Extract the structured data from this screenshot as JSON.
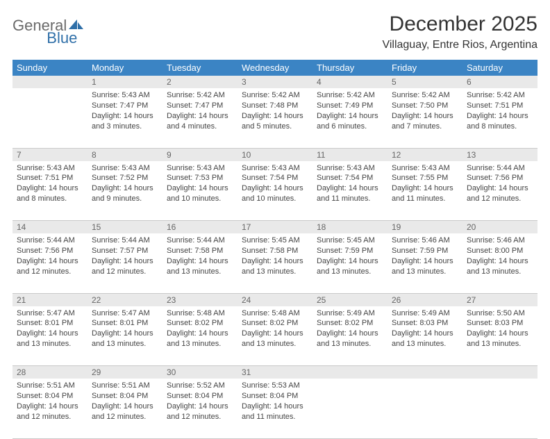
{
  "brand": {
    "part1": "General",
    "part2": "Blue"
  },
  "title": "December 2025",
  "location": "Villaguay, Entre Rios, Argentina",
  "colors": {
    "header_bg": "#3b84c4",
    "header_text": "#ffffff",
    "daynum_bg": "#e9e9e9",
    "daynum_text": "#666666",
    "border": "#c9c9c9",
    "body_text": "#444444",
    "brand_gray": "#6a6a6a",
    "brand_blue": "#2f6fa8"
  },
  "day_headers": [
    "Sunday",
    "Monday",
    "Tuesday",
    "Wednesday",
    "Thursday",
    "Friday",
    "Saturday"
  ],
  "weeks": [
    [
      {
        "num": "",
        "lines": [
          "",
          "",
          "",
          ""
        ]
      },
      {
        "num": "1",
        "lines": [
          "Sunrise: 5:43 AM",
          "Sunset: 7:47 PM",
          "Daylight: 14 hours",
          "and 3 minutes."
        ]
      },
      {
        "num": "2",
        "lines": [
          "Sunrise: 5:42 AM",
          "Sunset: 7:47 PM",
          "Daylight: 14 hours",
          "and 4 minutes."
        ]
      },
      {
        "num": "3",
        "lines": [
          "Sunrise: 5:42 AM",
          "Sunset: 7:48 PM",
          "Daylight: 14 hours",
          "and 5 minutes."
        ]
      },
      {
        "num": "4",
        "lines": [
          "Sunrise: 5:42 AM",
          "Sunset: 7:49 PM",
          "Daylight: 14 hours",
          "and 6 minutes."
        ]
      },
      {
        "num": "5",
        "lines": [
          "Sunrise: 5:42 AM",
          "Sunset: 7:50 PM",
          "Daylight: 14 hours",
          "and 7 minutes."
        ]
      },
      {
        "num": "6",
        "lines": [
          "Sunrise: 5:42 AM",
          "Sunset: 7:51 PM",
          "Daylight: 14 hours",
          "and 8 minutes."
        ]
      }
    ],
    [
      {
        "num": "7",
        "lines": [
          "Sunrise: 5:43 AM",
          "Sunset: 7:51 PM",
          "Daylight: 14 hours",
          "and 8 minutes."
        ]
      },
      {
        "num": "8",
        "lines": [
          "Sunrise: 5:43 AM",
          "Sunset: 7:52 PM",
          "Daylight: 14 hours",
          "and 9 minutes."
        ]
      },
      {
        "num": "9",
        "lines": [
          "Sunrise: 5:43 AM",
          "Sunset: 7:53 PM",
          "Daylight: 14 hours",
          "and 10 minutes."
        ]
      },
      {
        "num": "10",
        "lines": [
          "Sunrise: 5:43 AM",
          "Sunset: 7:54 PM",
          "Daylight: 14 hours",
          "and 10 minutes."
        ]
      },
      {
        "num": "11",
        "lines": [
          "Sunrise: 5:43 AM",
          "Sunset: 7:54 PM",
          "Daylight: 14 hours",
          "and 11 minutes."
        ]
      },
      {
        "num": "12",
        "lines": [
          "Sunrise: 5:43 AM",
          "Sunset: 7:55 PM",
          "Daylight: 14 hours",
          "and 11 minutes."
        ]
      },
      {
        "num": "13",
        "lines": [
          "Sunrise: 5:44 AM",
          "Sunset: 7:56 PM",
          "Daylight: 14 hours",
          "and 12 minutes."
        ]
      }
    ],
    [
      {
        "num": "14",
        "lines": [
          "Sunrise: 5:44 AM",
          "Sunset: 7:56 PM",
          "Daylight: 14 hours",
          "and 12 minutes."
        ]
      },
      {
        "num": "15",
        "lines": [
          "Sunrise: 5:44 AM",
          "Sunset: 7:57 PM",
          "Daylight: 14 hours",
          "and 12 minutes."
        ]
      },
      {
        "num": "16",
        "lines": [
          "Sunrise: 5:44 AM",
          "Sunset: 7:58 PM",
          "Daylight: 14 hours",
          "and 13 minutes."
        ]
      },
      {
        "num": "17",
        "lines": [
          "Sunrise: 5:45 AM",
          "Sunset: 7:58 PM",
          "Daylight: 14 hours",
          "and 13 minutes."
        ]
      },
      {
        "num": "18",
        "lines": [
          "Sunrise: 5:45 AM",
          "Sunset: 7:59 PM",
          "Daylight: 14 hours",
          "and 13 minutes."
        ]
      },
      {
        "num": "19",
        "lines": [
          "Sunrise: 5:46 AM",
          "Sunset: 7:59 PM",
          "Daylight: 14 hours",
          "and 13 minutes."
        ]
      },
      {
        "num": "20",
        "lines": [
          "Sunrise: 5:46 AM",
          "Sunset: 8:00 PM",
          "Daylight: 14 hours",
          "and 13 minutes."
        ]
      }
    ],
    [
      {
        "num": "21",
        "lines": [
          "Sunrise: 5:47 AM",
          "Sunset: 8:01 PM",
          "Daylight: 14 hours",
          "and 13 minutes."
        ]
      },
      {
        "num": "22",
        "lines": [
          "Sunrise: 5:47 AM",
          "Sunset: 8:01 PM",
          "Daylight: 14 hours",
          "and 13 minutes."
        ]
      },
      {
        "num": "23",
        "lines": [
          "Sunrise: 5:48 AM",
          "Sunset: 8:02 PM",
          "Daylight: 14 hours",
          "and 13 minutes."
        ]
      },
      {
        "num": "24",
        "lines": [
          "Sunrise: 5:48 AM",
          "Sunset: 8:02 PM",
          "Daylight: 14 hours",
          "and 13 minutes."
        ]
      },
      {
        "num": "25",
        "lines": [
          "Sunrise: 5:49 AM",
          "Sunset: 8:02 PM",
          "Daylight: 14 hours",
          "and 13 minutes."
        ]
      },
      {
        "num": "26",
        "lines": [
          "Sunrise: 5:49 AM",
          "Sunset: 8:03 PM",
          "Daylight: 14 hours",
          "and 13 minutes."
        ]
      },
      {
        "num": "27",
        "lines": [
          "Sunrise: 5:50 AM",
          "Sunset: 8:03 PM",
          "Daylight: 14 hours",
          "and 13 minutes."
        ]
      }
    ],
    [
      {
        "num": "28",
        "lines": [
          "Sunrise: 5:51 AM",
          "Sunset: 8:04 PM",
          "Daylight: 14 hours",
          "and 12 minutes."
        ]
      },
      {
        "num": "29",
        "lines": [
          "Sunrise: 5:51 AM",
          "Sunset: 8:04 PM",
          "Daylight: 14 hours",
          "and 12 minutes."
        ]
      },
      {
        "num": "30",
        "lines": [
          "Sunrise: 5:52 AM",
          "Sunset: 8:04 PM",
          "Daylight: 14 hours",
          "and 12 minutes."
        ]
      },
      {
        "num": "31",
        "lines": [
          "Sunrise: 5:53 AM",
          "Sunset: 8:04 PM",
          "Daylight: 14 hours",
          "and 11 minutes."
        ]
      },
      {
        "num": "",
        "lines": [
          "",
          "",
          "",
          ""
        ]
      },
      {
        "num": "",
        "lines": [
          "",
          "",
          "",
          ""
        ]
      },
      {
        "num": "",
        "lines": [
          "",
          "",
          "",
          ""
        ]
      }
    ]
  ]
}
